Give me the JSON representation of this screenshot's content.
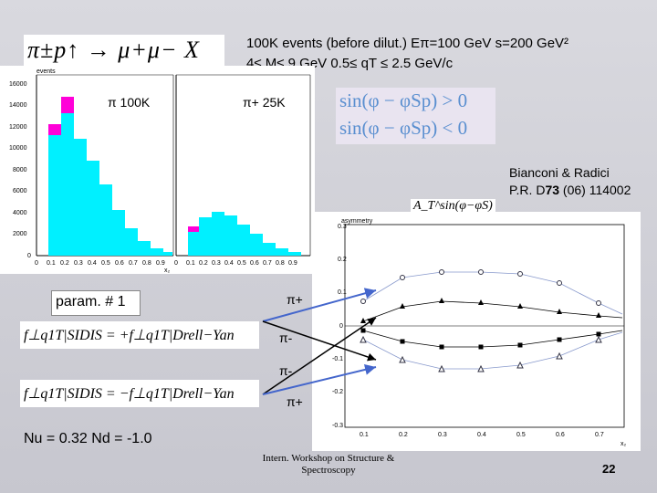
{
  "header": {
    "line1": "100K events (before dilut.)   Eπ=100 GeV  s=200 GeV²",
    "line2": "4≤ M≤ 9 GeV   0.5≤ qT ≤ 2.5 GeV/c"
  },
  "reaction": {
    "text": "π±p↑ → μ+μ− X"
  },
  "histogram_left": {
    "ylabel": "events",
    "xlabel": "x₂",
    "label": "π  100K",
    "yticks": [
      "0",
      "2000",
      "4000",
      "6000",
      "8000",
      "10000",
      "12000",
      "14000",
      "16000"
    ],
    "xticks": [
      "0",
      "0.1",
      "0.2",
      "0.3",
      "0.4",
      "0.5",
      "0.6",
      "0.7",
      "0.8",
      "0.9"
    ]
  },
  "histogram_right": {
    "label": "π+  25K",
    "xticks": [
      "0",
      "0.1",
      "0.2",
      "0.3",
      "0.4",
      "0.5",
      "0.6",
      "0.7",
      "0.8",
      "0.9"
    ]
  },
  "sin_conditions": {
    "line1": "sin(φ − φSp) > 0",
    "line2": "sin(φ − φSp) < 0"
  },
  "citation": {
    "line1": "Bianconi & Radici",
    "line2_prefix": "P.R. D",
    "line2_bold": "73",
    "line2_suffix": " (06) 114002"
  },
  "asym_plot": {
    "ylabel": "asymmetry",
    "formula": "A_T^sin(φ−φS)",
    "xlabel": "x₂",
    "yticks": [
      "0.3",
      "0.2",
      "0.1",
      "0",
      "-0.1",
      "-0.2",
      "-0.3"
    ],
    "xticks": [
      "0.1",
      "0.2",
      "0.3",
      "0.4",
      "0.5",
      "0.6",
      "0.7"
    ]
  },
  "param": {
    "label": "param. # 1",
    "eq1": "f⊥q1T|SIDIS = +f⊥q1T|Drell−Yan",
    "eq2": "f⊥q1T|SIDIS = −f⊥q1T|Drell−Yan"
  },
  "arrow_labels": {
    "pi_plus_top": "π+",
    "pi_minus_top": "π-",
    "pi_minus_bottom": "π-",
    "pi_plus_bottom": "π+"
  },
  "normalization": "Nu = 0.32  Nd = -1.0",
  "footer": {
    "workshop_line1": "Intern. Workshop on Structure &",
    "workshop_line2": "Spectroscopy",
    "page_number": "22"
  },
  "colors": {
    "histogram_fill": "#00f0ff",
    "histogram_top": "#ff00d8",
    "arrow": "#4466cc",
    "sin_text": "#5a8fd0",
    "sin_bg": "#e9e4f0"
  }
}
